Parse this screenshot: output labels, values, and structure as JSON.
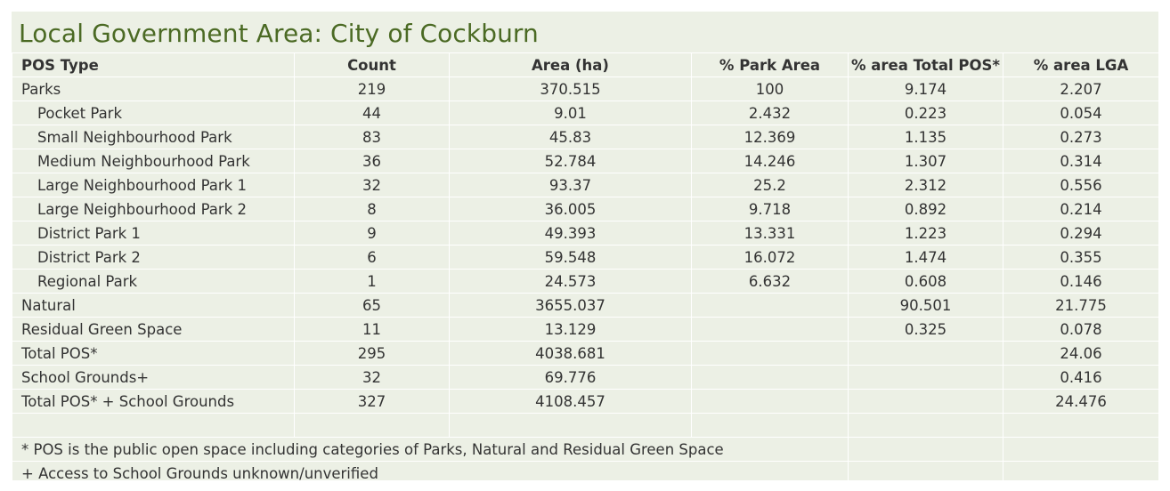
{
  "title": "Local Government Area: City of Cockburn",
  "columns": [
    "POS Type",
    "Count",
    "Area (ha)",
    "% Park Area",
    "% area Total POS*",
    "% area LGA"
  ],
  "rows": [
    {
      "label": "Parks",
      "sub": false,
      "count": "219",
      "area": "370.515",
      "park": "100",
      "pos": "9.174",
      "lga": "2.207"
    },
    {
      "label": "Pocket Park",
      "sub": true,
      "count": "44",
      "area": "9.01",
      "park": "2.432",
      "pos": "0.223",
      "lga": "0.054"
    },
    {
      "label": "Small Neighbourhood Park",
      "sub": true,
      "count": "83",
      "area": "45.83",
      "park": "12.369",
      "pos": "1.135",
      "lga": "0.273"
    },
    {
      "label": "Medium Neighbourhood Park",
      "sub": true,
      "count": "36",
      "area": "52.784",
      "park": "14.246",
      "pos": "1.307",
      "lga": "0.314"
    },
    {
      "label": "Large Neighbourhood Park 1",
      "sub": true,
      "count": "32",
      "area": "93.37",
      "park": "25.2",
      "pos": "2.312",
      "lga": "0.556"
    },
    {
      "label": "Large Neighbourhood Park 2",
      "sub": true,
      "count": "8",
      "area": "36.005",
      "park": "9.718",
      "pos": "0.892",
      "lga": "0.214"
    },
    {
      "label": "District Park 1",
      "sub": true,
      "count": "9",
      "area": "49.393",
      "park": "13.331",
      "pos": "1.223",
      "lga": "0.294"
    },
    {
      "label": "District Park 2",
      "sub": true,
      "count": "6",
      "area": "59.548",
      "park": "16.072",
      "pos": "1.474",
      "lga": "0.355"
    },
    {
      "label": "Regional Park",
      "sub": true,
      "count": "1",
      "area": "24.573",
      "park": "6.632",
      "pos": "0.608",
      "lga": "0.146"
    },
    {
      "label": "Natural",
      "sub": false,
      "count": "65",
      "area": "3655.037",
      "park": "",
      "pos": "90.501",
      "lga": "21.775"
    },
    {
      "label": "Residual Green Space",
      "sub": false,
      "count": "11",
      "area": "13.129",
      "park": "",
      "pos": "0.325",
      "lga": "0.078"
    },
    {
      "label": "Total POS*",
      "sub": false,
      "count": "295",
      "area": "4038.681",
      "park": "",
      "pos": "",
      "lga": "24.06"
    },
    {
      "label": "School Grounds+",
      "sub": false,
      "count": "32",
      "area": "69.776",
      "park": "",
      "pos": "",
      "lga": "0.416"
    },
    {
      "label": "Total POS* + School Grounds",
      "sub": false,
      "count": "327",
      "area": "4108.457",
      "park": "",
      "pos": "",
      "lga": "24.476"
    }
  ],
  "footnotes": [
    "* POS is the public open space including categories of Parks, Natural and Residual Green Space",
    "+ Access to School Grounds unknown/unverified"
  ]
}
